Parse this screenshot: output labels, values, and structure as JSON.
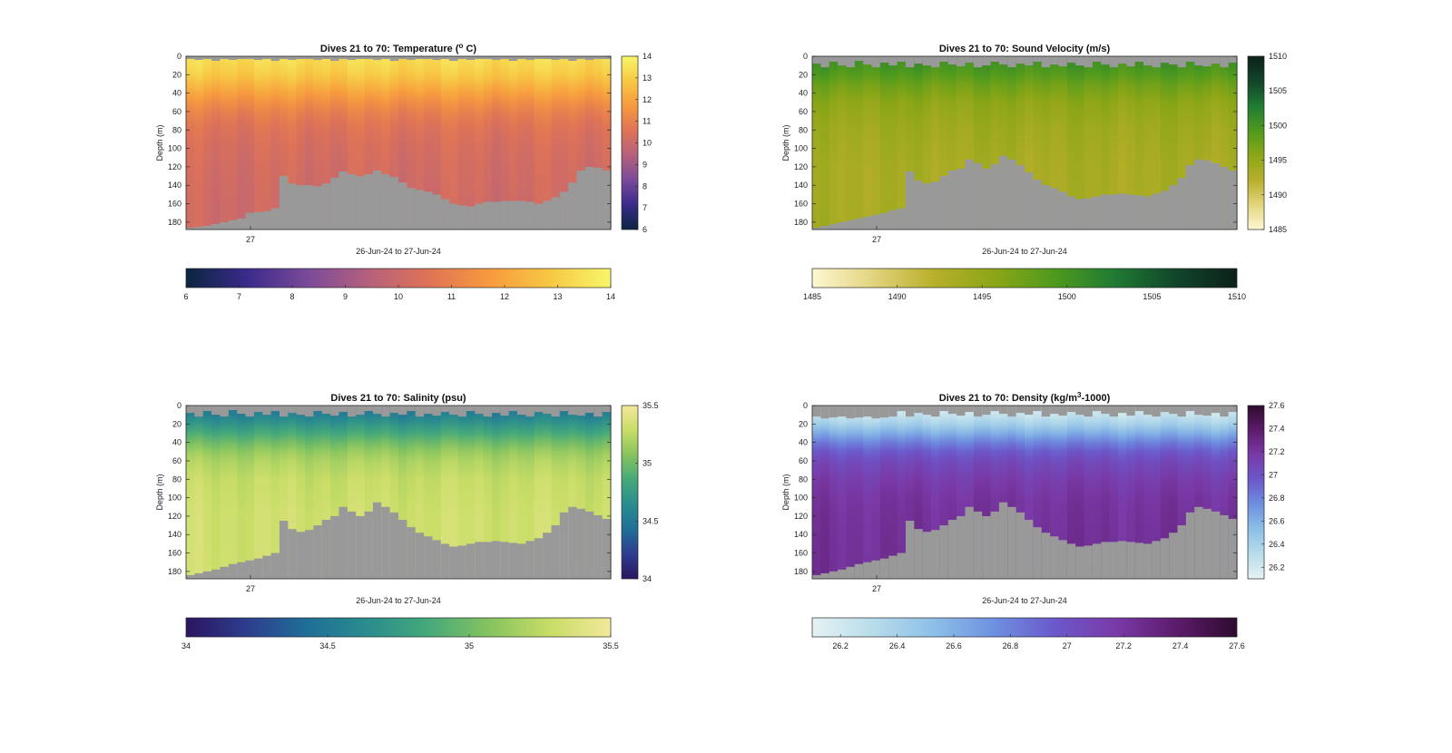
{
  "figure": {
    "background": "#ffffff",
    "mask_color": "#999999"
  },
  "chart_data": [
    {
      "type": "heatmap",
      "title_prefix": "Dives 21 to 70: Temperature (",
      "title_sup": "o",
      "title_suffix": " C)",
      "xlabel": "26-Jun-24 to 27-Jun-24",
      "ylabel": "Depth (m)",
      "x_ticks": [
        "27"
      ],
      "y_ticks": [
        0,
        20,
        40,
        60,
        80,
        100,
        120,
        140,
        160,
        180
      ],
      "ylim": [
        0,
        188
      ],
      "dives": [
        21,
        70
      ],
      "colormap": [
        "#0b2540",
        "#3a2a8a",
        "#7a4a9a",
        "#b5607c",
        "#df7356",
        "#f79a3e",
        "#f7c843",
        "#f7f66a"
      ],
      "clim": [
        6,
        14
      ],
      "vertical_colorbar_ticks": [
        6,
        7,
        8,
        9,
        10,
        11,
        12,
        13,
        14
      ],
      "horizontal_colorbar_ticks": [
        6,
        7,
        8,
        9,
        10,
        11,
        12,
        13,
        14
      ],
      "profile_depth": [
        0,
        10,
        20,
        30,
        40,
        50,
        60,
        70,
        80,
        100,
        120,
        140,
        160,
        188
      ],
      "profile_value": [
        13.4,
        13.2,
        12.9,
        12.4,
        11.9,
        11.4,
        11.0,
        10.7,
        10.5,
        10.3,
        10.2,
        10.15,
        10.1,
        10.1
      ],
      "bottom_depth_m": [
        186,
        185,
        184,
        182,
        180,
        178,
        176,
        170,
        169,
        168,
        165,
        130,
        138,
        140,
        140,
        141,
        138,
        132,
        125,
        128,
        130,
        128,
        124,
        128,
        131,
        137,
        143,
        145,
        147,
        150,
        155,
        160,
        162,
        163,
        160,
        158,
        158,
        157,
        157,
        157,
        158,
        160,
        157,
        153,
        147,
        137,
        124,
        120,
        121,
        124
      ],
      "gap_depth_m": [
        3,
        4,
        3,
        5,
        3,
        4,
        3,
        3,
        4,
        3,
        5,
        3,
        4,
        3,
        3,
        4,
        3,
        5,
        3,
        4,
        3,
        3,
        4,
        3,
        5,
        3,
        4,
        3,
        3,
        4,
        3,
        5,
        3,
        4,
        3,
        3,
        4,
        3,
        5,
        3,
        4,
        3,
        3,
        4,
        3,
        5,
        3,
        4,
        3,
        3
      ]
    },
    {
      "type": "heatmap",
      "title_prefix": "Dives 21 to 70: Sound Velocity (m/s)",
      "title_sup": "",
      "title_suffix": "",
      "xlabel": "26-Jun-24 to 27-Jun-24",
      "ylabel": "Depth (m)",
      "x_ticks": [
        "27"
      ],
      "y_ticks": [
        0,
        20,
        40,
        60,
        80,
        100,
        120,
        140,
        160,
        180
      ],
      "ylim": [
        0,
        188
      ],
      "dives": [
        21,
        70
      ],
      "colormap": [
        "#fdf7d2",
        "#e2d47e",
        "#b8af2a",
        "#8ca616",
        "#4e9a1e",
        "#1f7a34",
        "#11452a",
        "#0c2118"
      ],
      "clim": [
        1485,
        1510
      ],
      "vertical_colorbar_ticks": [
        1485,
        1490,
        1495,
        1500,
        1505,
        1510
      ],
      "horizontal_colorbar_ticks": [
        1485,
        1490,
        1495,
        1500,
        1505,
        1510
      ],
      "profile_depth": [
        0,
        10,
        20,
        30,
        40,
        50,
        60,
        80,
        100,
        120,
        150,
        188
      ],
      "profile_value": [
        1500.5,
        1500.0,
        1499.0,
        1497.5,
        1496.5,
        1495.5,
        1495.0,
        1494.2,
        1493.8,
        1493.5,
        1493.4,
        1493.6
      ],
      "bottom_depth_m": [
        186,
        184,
        182,
        180,
        178,
        176,
        174,
        172,
        170,
        167,
        165,
        125,
        135,
        138,
        136,
        130,
        124,
        122,
        112,
        116,
        122,
        117,
        108,
        112,
        118,
        126,
        134,
        140,
        143,
        147,
        152,
        155,
        154,
        152,
        150,
        150,
        149,
        150,
        151,
        152,
        149,
        146,
        140,
        132,
        118,
        112,
        113,
        116,
        120,
        124
      ],
      "gap_depth_m": [
        8,
        12,
        6,
        10,
        12,
        5,
        9,
        12,
        7,
        10,
        6,
        12,
        8,
        10,
        12,
        6,
        9,
        11,
        7,
        12,
        10,
        6,
        9,
        12,
        8,
        10,
        6,
        12,
        9,
        11,
        7,
        10,
        12,
        6,
        9,
        12,
        8,
        11,
        6,
        10,
        12,
        7,
        9,
        12,
        6,
        10,
        11,
        8,
        12,
        7
      ]
    },
    {
      "type": "heatmap",
      "title_prefix": "Dives 21 to 70: Salinity (psu)",
      "title_sup": "",
      "title_suffix": "",
      "xlabel": "26-Jun-24 to 27-Jun-24",
      "ylabel": "Depth (m)",
      "x_ticks": [
        "27"
      ],
      "y_ticks": [
        0,
        20,
        40,
        60,
        80,
        100,
        120,
        140,
        160,
        180
      ],
      "ylim": [
        0,
        188
      ],
      "dives": [
        21,
        70
      ],
      "colormap": [
        "#2c1560",
        "#2d3d8e",
        "#1f6f98",
        "#2a8d8e",
        "#45a97a",
        "#86c35f",
        "#c8dd66",
        "#f3e89a"
      ],
      "clim": [
        34,
        35.5
      ],
      "vertical_colorbar_ticks": [
        34,
        34.5,
        35,
        35.5
      ],
      "horizontal_colorbar_ticks": [
        34,
        34.5,
        35,
        35.5
      ],
      "profile_depth": [
        0,
        10,
        20,
        30,
        40,
        50,
        60,
        80,
        100,
        120,
        150,
        188
      ],
      "profile_value": [
        34.45,
        34.55,
        34.7,
        34.85,
        35.0,
        35.12,
        35.2,
        35.28,
        35.3,
        35.32,
        35.32,
        35.33
      ],
      "bottom_depth_m": [
        184,
        182,
        180,
        178,
        175,
        172,
        170,
        168,
        166,
        163,
        160,
        125,
        134,
        137,
        135,
        130,
        124,
        120,
        110,
        115,
        120,
        115,
        105,
        110,
        116,
        124,
        132,
        138,
        142,
        146,
        150,
        153,
        152,
        150,
        148,
        148,
        147,
        148,
        149,
        150,
        147,
        144,
        138,
        130,
        116,
        110,
        112,
        115,
        119,
        123
      ],
      "gap_depth_m": [
        8,
        12,
        6,
        10,
        12,
        5,
        9,
        12,
        7,
        10,
        6,
        12,
        8,
        10,
        12,
        6,
        9,
        11,
        7,
        12,
        10,
        6,
        9,
        12,
        8,
        10,
        6,
        12,
        9,
        11,
        7,
        10,
        12,
        6,
        9,
        12,
        8,
        11,
        6,
        10,
        12,
        7,
        9,
        12,
        6,
        10,
        11,
        8,
        12,
        7
      ]
    },
    {
      "type": "heatmap",
      "title_prefix": "Dives 21 to 70: Density (kg/m",
      "title_sup": "3",
      "title_suffix": "-1000)",
      "xlabel": "26-Jun-24 to 27-Jun-24",
      "ylabel": "Depth (m)",
      "x_ticks": [
        "27"
      ],
      "y_ticks": [
        0,
        20,
        40,
        60,
        80,
        100,
        120,
        140,
        160,
        180
      ],
      "ylim": [
        0,
        188
      ],
      "dives": [
        21,
        70
      ],
      "colormap": [
        "#e6f2f4",
        "#b8dcea",
        "#8cc0e8",
        "#6e90e0",
        "#6b58cb",
        "#7a3aa8",
        "#5d1b6c",
        "#2e0b2e"
      ],
      "clim": [
        26.1,
        27.6
      ],
      "vertical_colorbar_ticks": [
        26.2,
        26.4,
        26.6,
        26.8,
        27,
        27.2,
        27.4,
        27.6
      ],
      "horizontal_colorbar_ticks": [
        26.2,
        26.4,
        26.6,
        26.8,
        27,
        27.2,
        27.4,
        27.6
      ],
      "profile_depth": [
        0,
        10,
        20,
        30,
        40,
        50,
        60,
        80,
        100,
        120,
        150,
        188
      ],
      "profile_value": [
        26.15,
        26.25,
        26.4,
        26.6,
        26.8,
        26.95,
        27.05,
        27.15,
        27.2,
        27.22,
        27.23,
        27.24
      ],
      "bottom_depth_m": [
        184,
        182,
        180,
        178,
        175,
        172,
        170,
        168,
        166,
        163,
        160,
        125,
        134,
        137,
        135,
        130,
        124,
        120,
        110,
        115,
        120,
        115,
        105,
        110,
        116,
        124,
        132,
        138,
        142,
        146,
        150,
        153,
        152,
        150,
        148,
        148,
        147,
        148,
        149,
        150,
        147,
        144,
        138,
        130,
        116,
        110,
        112,
        115,
        119,
        123
      ],
      "gap_depth_m": [
        12,
        14,
        13,
        12,
        14,
        13,
        12,
        14,
        13,
        12,
        6,
        12,
        8,
        10,
        12,
        6,
        9,
        11,
        7,
        12,
        10,
        6,
        9,
        12,
        8,
        10,
        6,
        12,
        9,
        11,
        7,
        10,
        12,
        6,
        9,
        12,
        8,
        11,
        6,
        10,
        12,
        7,
        9,
        12,
        6,
        10,
        11,
        8,
        12,
        7
      ]
    }
  ]
}
